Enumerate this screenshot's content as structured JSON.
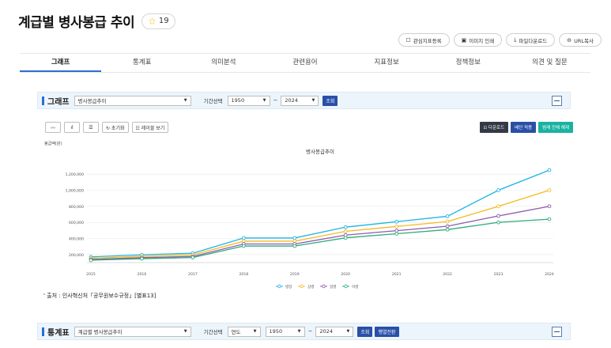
{
  "page_title": "계급별 병사봉급 추이",
  "favorite_count": "19",
  "util_buttons": [
    {
      "icon": "bookmark-icon",
      "glyph": "☐",
      "label": "관심지표등록"
    },
    {
      "icon": "print-icon",
      "glyph": "▣",
      "label": "이미지 인쇄"
    },
    {
      "icon": "download-icon",
      "glyph": "⤓",
      "label": "파일다운로드"
    },
    {
      "icon": "link-icon",
      "glyph": "⊖",
      "label": "URL복사"
    }
  ],
  "tabs": [
    "그래프",
    "통계표",
    "의미분석",
    "관련용어",
    "지표정보",
    "정책정보",
    "의견 및 질문"
  ],
  "graph_section": {
    "title": "그래프",
    "series_select": "병사봉급추이",
    "period_label": "기간선택",
    "start_year": "1950",
    "tilde": "~",
    "end_year": "2024",
    "search_label": "조회"
  },
  "chart_tools": {
    "line_glyph": "〰",
    "bar_glyph": "ıl",
    "hbar_glyph": "☰",
    "reset_label": "↻ 초기화",
    "label_view": "☷ 레이블 보기",
    "download": "⊡ 다운로드",
    "apply": "배단 적용",
    "apply_all": "범례 전체 해제"
  },
  "table_section": {
    "title": "통계표",
    "series_select": "계급별 병사봉급추이",
    "period_label": "기간선택",
    "unit_select": "연도",
    "start_year": "1950",
    "tilde": "~",
    "end_year": "2024",
    "search_label": "조회",
    "extra_label": "행열전환"
  },
  "source_text": "' 출처 : 인사혁신처「공무원보수규정」[별표13]",
  "colors": {
    "accent": "#2a6fd1",
    "navy": "#2a4fa8",
    "teal": "#19b3a1"
  },
  "chart_data": {
    "type": "line",
    "title": "병사봉급추이",
    "ylabel": "봉급액(원)",
    "x": [
      "2015",
      "2016",
      "2017",
      "2018",
      "2019",
      "2020",
      "2021",
      "2022",
      "2023",
      "2024"
    ],
    "ylim": [
      100000,
      1300000
    ],
    "yticks": [
      200000,
      400000,
      600000,
      800000,
      1000000,
      1200000
    ],
    "ytick_labels": [
      "200,000",
      "400,000",
      "600,000",
      "800,000",
      "1,000,000",
      "1,200,000"
    ],
    "grid": true,
    "legend_position": "bottom",
    "series": [
      {
        "name": "병장",
        "color": "#1fb3e6",
        "values": [
          171400,
          197100,
          216000,
          405700,
          405700,
          540900,
          608500,
          676100,
          1000000,
          1250000
        ]
      },
      {
        "name": "상병",
        "color": "#f5b920",
        "values": [
          154800,
          178000,
          195000,
          366200,
          366200,
          488200,
          549200,
          610200,
          800000,
          1000000
        ]
      },
      {
        "name": "일병",
        "color": "#8a5cad",
        "values": [
          140000,
          161000,
          176400,
          331300,
          331300,
          441700,
          496900,
          552100,
          680000,
          800000
        ]
      },
      {
        "name": "이병",
        "color": "#2faa7a",
        "values": [
          129400,
          148800,
          163000,
          306100,
          306100,
          408100,
          459100,
          510100,
          600000,
          640000
        ]
      }
    ]
  }
}
